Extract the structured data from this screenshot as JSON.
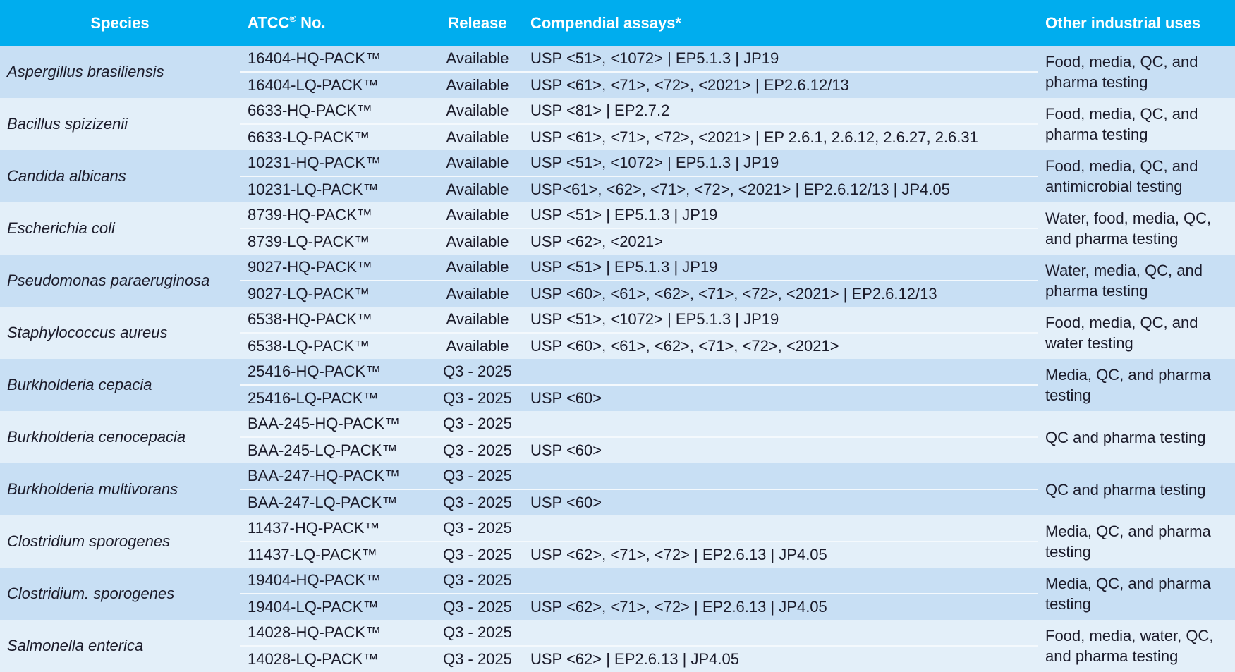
{
  "header": {
    "species": "Species",
    "atcc": "ATCC",
    "atcc_reg": "®",
    "atcc_suffix": " No.",
    "release": "Release",
    "compendial": "Compendial assays*",
    "other_uses": "Other industrial uses"
  },
  "colors": {
    "header": "#00adee",
    "row_dark": "#c8dff4",
    "row_light": "#e3eff9"
  },
  "groups": [
    {
      "species": "Aspergillus brasiliensis",
      "uses": "Food, media, QC, and pharma testing",
      "items": [
        {
          "id": "16404-HQ-PACK™",
          "release": "Available",
          "assays": "USP <51>, <1072> | EP5.1.3 | JP19"
        },
        {
          "id": "16404-LQ-PACK™",
          "release": "Available",
          "assays": "USP <61>, <71>, <72>, <2021> | EP2.6.12/13"
        }
      ]
    },
    {
      "species": "Bacillus spizizenii",
      "uses": "Food, media, QC, and pharma testing",
      "items": [
        {
          "id": "6633-HQ-PACK™",
          "release": "Available",
          "assays": "USP <81> | EP2.7.2"
        },
        {
          "id": "6633-LQ-PACK™",
          "release": "Available",
          "assays": "USP <61>, <71>, <72>, <2021> | EP 2.6.1, 2.6.12, 2.6.27, 2.6.31"
        }
      ]
    },
    {
      "species": "Candida albicans",
      "uses": "Food, media, QC, and antimicrobial testing",
      "items": [
        {
          "id": "10231-HQ-PACK™",
          "release": "Available",
          "assays": "USP <51>, <1072> | EP5.1.3 | JP19"
        },
        {
          "id": "10231-LQ-PACK™",
          "release": "Available",
          "assays": "USP<61>, <62>, <71>, <72>, <2021> | EP2.6.12/13 | JP4.05"
        }
      ]
    },
    {
      "species": "Escherichia coli",
      "uses": "Water, food, media, QC, and pharma testing",
      "items": [
        {
          "id": "8739-HQ-PACK™",
          "release": "Available",
          "assays": "USP <51> | EP5.1.3 | JP19"
        },
        {
          "id": "8739-LQ-PACK™",
          "release": "Available",
          "assays": "USP <62>, <2021>"
        }
      ]
    },
    {
      "species": "Pseudomonas paraeruginosa",
      "uses": "Water, media, QC, and pharma testing",
      "items": [
        {
          "id": "9027-HQ-PACK™",
          "release": "Available",
          "assays": "USP <51> | EP5.1.3 | JP19"
        },
        {
          "id": "9027-LQ-PACK™",
          "release": "Available",
          "assays": "USP <60>, <61>, <62>, <71>, <72>, <2021> | EP2.6.12/13"
        }
      ]
    },
    {
      "species": "Staphylococcus aureus",
      "uses": "Food, media, QC, and water testing",
      "items": [
        {
          "id": "6538-HQ-PACK™",
          "release": "Available",
          "assays": "USP <51>, <1072> | EP5.1.3 | JP19"
        },
        {
          "id": "6538-LQ-PACK™",
          "release": "Available",
          "assays": "USP <60>, <61>, <62>, <71>, <72>, <2021>"
        }
      ]
    },
    {
      "species": "Burkholderia cepacia",
      "uses": "Media, QC, and pharma testing",
      "items": [
        {
          "id": "25416-HQ-PACK™",
          "release": "Q3 - 2025",
          "assays": ""
        },
        {
          "id": "25416-LQ-PACK™",
          "release": "Q3 - 2025",
          "assays": "USP <60>"
        }
      ]
    },
    {
      "species": "Burkholderia cenocepacia",
      "uses": "QC and pharma testing",
      "items": [
        {
          "id": "BAA-245-HQ-PACK™",
          "release": "Q3 - 2025",
          "assays": ""
        },
        {
          "id": "BAA-245-LQ-PACK™",
          "release": "Q3 - 2025",
          "assays": "USP <60>"
        }
      ]
    },
    {
      "species": "Burkholderia multivorans",
      "uses": "QC and pharma testing",
      "items": [
        {
          "id": "BAA-247-HQ-PACK™",
          "release": "Q3 - 2025",
          "assays": ""
        },
        {
          "id": "BAA-247-LQ-PACK™",
          "release": "Q3 - 2025",
          "assays": "USP <60>"
        }
      ]
    },
    {
      "species": "Clostridium sporogenes",
      "uses": "Media, QC, and pharma testing",
      "items": [
        {
          "id": "11437-HQ-PACK™",
          "release": "Q3 - 2025",
          "assays": ""
        },
        {
          "id": "11437-LQ-PACK™",
          "release": "Q3 - 2025",
          "assays": "USP <62>, <71>, <72> | EP2.6.13 | JP4.05"
        }
      ]
    },
    {
      "species": "Clostridium. sporogenes",
      "uses": "Media, QC, and pharma testing",
      "items": [
        {
          "id": "19404-HQ-PACK™",
          "release": "Q3 - 2025",
          "assays": ""
        },
        {
          "id": "19404-LQ-PACK™",
          "release": "Q3 - 2025",
          "assays": "USP <62>, <71>, <72> | EP2.6.13 | JP4.05"
        }
      ]
    },
    {
      "species": "Salmonella enterica",
      "uses": "Food, media, water, QC, and pharma testing",
      "items": [
        {
          "id": "14028-HQ-PACK™",
          "release": "Q3 - 2025",
          "assays": ""
        },
        {
          "id": "14028-LQ-PACK™",
          "release": "Q3 - 2025",
          "assays": "USP <62> | EP2.6.13 | JP4.05"
        }
      ]
    }
  ]
}
